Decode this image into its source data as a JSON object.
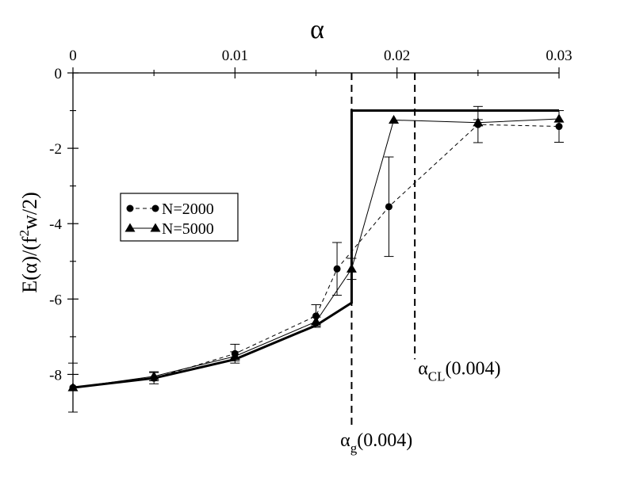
{
  "chart_data": {
    "type": "line",
    "xlabel": "α",
    "ylabel_parts": {
      "a": "E(α)/(f",
      "sup": "2",
      "b": "w/2)"
    },
    "xlim": [
      0,
      0.03
    ],
    "ylim": [
      -9,
      0
    ],
    "x_axis_position": "top",
    "x_ticks": [
      {
        "v": 0,
        "label": "0"
      },
      {
        "v": 0.01,
        "label": "0.01"
      },
      {
        "v": 0.02,
        "label": "0.02"
      },
      {
        "v": 0.03,
        "label": "0.03"
      }
    ],
    "y_ticks": [
      {
        "v": 0,
        "label": "0"
      },
      {
        "v": -2,
        "label": "-2"
      },
      {
        "v": -4,
        "label": "-4"
      },
      {
        "v": -6,
        "label": "-6"
      },
      {
        "v": -8,
        "label": "-8"
      }
    ],
    "x_minor_ticks": [
      0.005,
      0.015,
      0.025
    ],
    "y_minor_ticks": [
      -1,
      -3,
      -5,
      -7
    ],
    "grid": false,
    "legend": "left",
    "series": [
      {
        "name": "N=2000",
        "marker": "circle",
        "line": "dashed",
        "points": [
          {
            "x": 0,
            "y": -8.35,
            "err": 0.65
          },
          {
            "x": 0.005,
            "y": -8.1,
            "err": 0.15
          },
          {
            "x": 0.01,
            "y": -7.45,
            "err": 0.25
          },
          {
            "x": 0.015,
            "y": -6.45,
            "err": 0.3
          },
          {
            "x": 0.0163,
            "y": -5.2,
            "err": 0.7
          },
          {
            "x": 0.0195,
            "y": -3.55,
            "err": 1.32
          },
          {
            "x": 0.025,
            "y": -1.37,
            "err": 0.48
          },
          {
            "x": 0.03,
            "y": -1.42,
            "err": 0.42
          }
        ]
      },
      {
        "name": "N=5000",
        "marker": "triangle",
        "line": "solid",
        "points": [
          {
            "x": 0,
            "y": -8.35,
            "err": 0.05
          },
          {
            "x": 0.005,
            "y": -8.05,
            "err": 0.12
          },
          {
            "x": 0.01,
            "y": -7.52,
            "err": 0.12
          },
          {
            "x": 0.015,
            "y": -6.6,
            "err": 0.12
          },
          {
            "x": 0.0172,
            "y": -5.2,
            "err": 0.28
          },
          {
            "x": 0.0198,
            "y": -1.25,
            "err": 0.05
          },
          {
            "x": 0.025,
            "y": -1.32,
            "err": 0.08
          },
          {
            "x": 0.03,
            "y": -1.22,
            "err": 0.05
          }
        ]
      }
    ],
    "theory_curve": {
      "points": [
        {
          "x": 0,
          "y": -8.35
        },
        {
          "x": 0.005,
          "y": -8.1
        },
        {
          "x": 0.01,
          "y": -7.6
        },
        {
          "x": 0.015,
          "y": -6.7
        },
        {
          "x": 0.0172,
          "y": -6.1
        },
        {
          "x": 0.0172,
          "y": -1.0
        },
        {
          "x": 0.03,
          "y": -1.0
        }
      ]
    },
    "vlines": [
      {
        "x": 0.0172,
        "y_from": 0,
        "y_to": -9.45
      },
      {
        "x": 0.0211,
        "y_from": 0,
        "y_to": -7.6
      }
    ],
    "annotations": [
      {
        "main": "α",
        "sub": "g",
        "rest": "(0.004)",
        "x": 0.0165,
        "y": -9.9
      },
      {
        "main": "α",
        "sub": "CL",
        "rest": "(0.004)",
        "x": 0.0213,
        "y": -8.0
      }
    ]
  }
}
